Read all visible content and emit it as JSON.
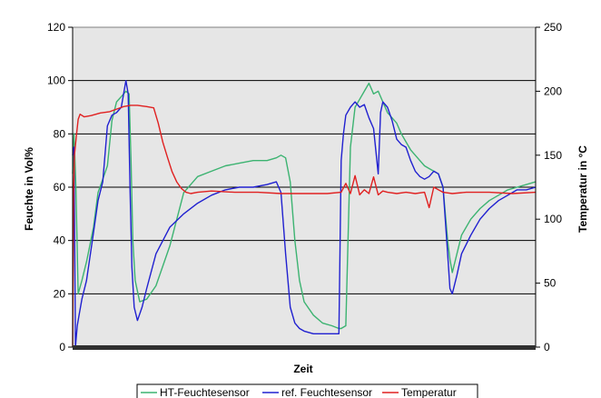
{
  "chart_data": {
    "type": "line",
    "title": "",
    "xlabel": "Zeit",
    "ylabel": "Feuchte in Vol%",
    "y2label": "Temperatur in °C",
    "ylim": [
      0,
      120
    ],
    "y2lim": [
      0,
      250
    ],
    "xlim": [
      0,
      100
    ],
    "yticks": [
      "0",
      "20",
      "40",
      "60",
      "80",
      "100",
      "120"
    ],
    "y2ticks": [
      "0",
      "50",
      "100",
      "150",
      "200",
      "250"
    ],
    "grid": true,
    "legend": "bottom",
    "series": [
      {
        "name": "HT-Feuchtesensor",
        "color": "#3cb371",
        "axis": "left",
        "x": [
          0,
          0.3,
          0.7,
          1.2,
          2,
          3,
          4.5,
          5.5,
          6.5,
          7.5,
          8.5,
          9.5,
          10.5,
          11.5,
          12.2,
          12.6,
          13,
          13.5,
          14.5,
          16,
          18,
          21,
          24,
          27,
          30,
          33,
          36,
          39,
          42,
          44,
          45,
          46,
          47,
          48,
          49,
          50,
          52,
          54,
          56,
          57.5,
          58,
          59,
          60,
          61,
          62,
          63,
          64,
          65,
          66,
          67,
          68,
          69,
          70,
          71,
          72,
          73,
          74,
          75,
          76,
          77,
          78,
          79,
          80,
          81,
          81.5,
          82,
          83,
          84,
          86,
          88,
          90,
          92,
          94,
          96,
          98,
          100
        ],
        "y": [
          65,
          80,
          60,
          20,
          25,
          32,
          45,
          58,
          63,
          68,
          85,
          92,
          94,
          96,
          95,
          70,
          40,
          25,
          17,
          18,
          23,
          38,
          58,
          64,
          66,
          68,
          69,
          70,
          70,
          71,
          72,
          71,
          62,
          40,
          25,
          17,
          12,
          9,
          8,
          7,
          7,
          8,
          75,
          90,
          93,
          96,
          99,
          95,
          96,
          92,
          88,
          86,
          84,
          80,
          77,
          74,
          72,
          70,
          68,
          67,
          66,
          65,
          60,
          40,
          33,
          28,
          35,
          42,
          48,
          52,
          55,
          57,
          59,
          60,
          61,
          62
        ]
      },
      {
        "name": "ref. Feuchtesensor",
        "color": "#2020d0",
        "axis": "left",
        "x": [
          0,
          0.3,
          0.6,
          1.0,
          1.4,
          2,
          3,
          4.5,
          5.5,
          6.5,
          7.5,
          8.5,
          9.5,
          10.5,
          11.5,
          12.0,
          12.4,
          12.8,
          13.3,
          14,
          15,
          16,
          18,
          21,
          24,
          27,
          30,
          33,
          36,
          39,
          42,
          44,
          45,
          46,
          47,
          48,
          49,
          50,
          52,
          54,
          56,
          57.5,
          58,
          58.5,
          59,
          60,
          61,
          62,
          63,
          64,
          65,
          66,
          66.5,
          67,
          68,
          69,
          70,
          71,
          72,
          73,
          74,
          75,
          76,
          77,
          78,
          79,
          80,
          81,
          81.5,
          82,
          83,
          84,
          86,
          88,
          90,
          92,
          94,
          96,
          98,
          100
        ],
        "y": [
          72,
          75,
          0,
          8,
          12,
          18,
          25,
          43,
          55,
          62,
          83,
          87,
          88,
          90,
          100,
          95,
          60,
          30,
          15,
          10,
          15,
          22,
          35,
          45,
          50,
          54,
          57,
          59,
          60,
          60,
          61,
          62,
          58,
          35,
          15,
          9,
          7,
          6,
          5,
          5,
          5,
          5,
          70,
          80,
          87,
          90,
          92,
          90,
          91,
          86,
          82,
          65,
          88,
          92,
          90,
          85,
          78,
          76,
          75,
          70,
          66,
          64,
          63,
          64,
          66,
          65,
          60,
          35,
          22,
          20,
          27,
          35,
          42,
          48,
          52,
          55,
          57,
          59,
          59,
          60
        ]
      },
      {
        "name": "Temperatur",
        "color": "#e02020",
        "axis": "right",
        "x": [
          0,
          0.2,
          0.4,
          0.8,
          1.2,
          1.6,
          2.5,
          4,
          6,
          8,
          9.5,
          11,
          12.5,
          14,
          16,
          17.5,
          18.5,
          19.5,
          20.5,
          21.5,
          22.5,
          23.5,
          24.5,
          25.5,
          27,
          30,
          35,
          40,
          45,
          50,
          55,
          58,
          59,
          60,
          61,
          62,
          63,
          64,
          65,
          66,
          67,
          68,
          70,
          72,
          74,
          76,
          77,
          78,
          80,
          82,
          85,
          90,
          95,
          100
        ],
        "y": [
          0,
          120,
          150,
          165,
          178,
          182,
          180,
          181,
          183,
          184,
          186,
          188,
          189,
          189,
          188,
          187,
          175,
          160,
          148,
          137,
          129,
          124,
          121,
          120,
          121,
          122,
          121,
          121,
          120,
          120,
          120,
          121,
          128,
          120,
          134,
          119,
          123,
          120,
          133,
          119,
          122,
          121,
          120,
          121,
          120,
          121,
          109,
          125,
          121,
          120,
          121,
          121,
          120,
          121
        ]
      }
    ]
  }
}
